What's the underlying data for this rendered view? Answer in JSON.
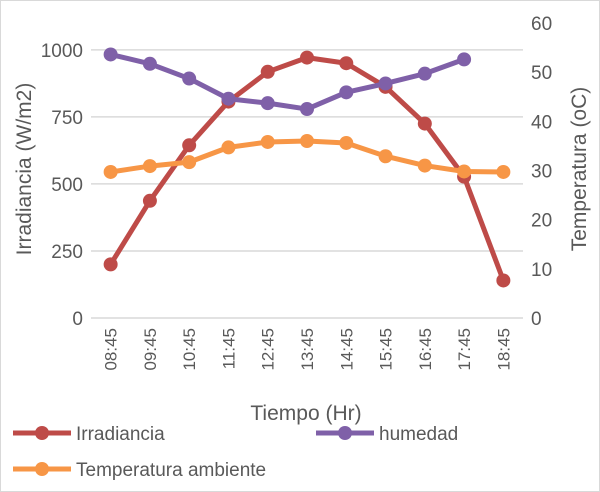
{
  "chart_data": {
    "type": "line",
    "title": "",
    "xlabel": "Tiempo (Hr)",
    "ylabel": "Irradiancia (W/m2)",
    "ylabel_right": "Temperatura (oC)",
    "categories": [
      "08:45",
      "09:45",
      "10:45",
      "11:45",
      "12:45",
      "13:45",
      "14:45",
      "15:45",
      "16:45",
      "17:45",
      "18:45"
    ],
    "ylim": [
      0,
      1100
    ],
    "yticks": [
      0,
      250,
      500,
      750,
      1000
    ],
    "ylim_right": [
      0,
      60
    ],
    "yticks_right": [
      0,
      10,
      20,
      30,
      40,
      50,
      60
    ],
    "grid": true,
    "legend": "bottom",
    "series": [
      {
        "name": "Irradiancia",
        "axis": "left",
        "color": "#be4b48",
        "values": [
          200,
          437,
          644,
          807,
          918,
          971,
          950,
          862,
          725,
          527,
          140
        ]
      },
      {
        "name": "humedad",
        "axis": "right",
        "color": "#7f60a8",
        "values": [
          53.6,
          51.7,
          48.7,
          44.6,
          43.7,
          42.5,
          45.9,
          47.7,
          49.7,
          52.6,
          null
        ]
      },
      {
        "name": "Temperatura ambiente",
        "axis": "right",
        "color": "#f79646",
        "values": [
          29.7,
          30.9,
          31.7,
          34.7,
          35.8,
          36.0,
          35.6,
          32.9,
          31.0,
          29.8,
          29.7
        ]
      }
    ]
  }
}
